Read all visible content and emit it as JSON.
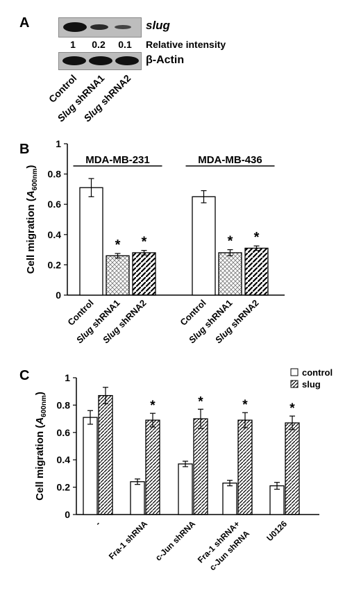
{
  "panel_a": {
    "letter": "A",
    "gene_label": "slug",
    "relative_intensity_label": "Relative intensity",
    "intensities": [
      "1",
      "0.2",
      "0.1"
    ],
    "actin_label": "β-Actin",
    "lanes": [
      "Control",
      "Slug shRNA1",
      "Slug shRNA2"
    ]
  },
  "chart_data": [
    {
      "panel": "B",
      "type": "bar",
      "ylabel": "Cell migration (A600nm)",
      "ylim": [
        0,
        1
      ],
      "yticks": [
        "0",
        "0.2",
        "0.4",
        "0.6",
        "0.8",
        "1"
      ],
      "groups": [
        {
          "name": "MDA-MB-231",
          "categories": [
            "Control",
            "Slug shRNA1",
            "Slug shRNA2"
          ],
          "values": [
            0.71,
            0.26,
            0.28
          ],
          "errors": [
            0.06,
            0.015,
            0.015
          ],
          "significant": [
            false,
            true,
            true
          ]
        },
        {
          "name": "MDA-MB-436",
          "categories": [
            "Control",
            "Slug shRNA1",
            "Slug shRNA2"
          ],
          "values": [
            0.65,
            0.28,
            0.31
          ],
          "errors": [
            0.04,
            0.02,
            0.015
          ],
          "significant": [
            false,
            true,
            true
          ]
        }
      ],
      "significance_mark": "*"
    },
    {
      "panel": "C",
      "type": "bar",
      "ylabel": "Cell migration (A600nm)",
      "ylim": [
        0,
        1
      ],
      "yticks": [
        "0",
        "0.2",
        "0.4",
        "0.6",
        "0.8",
        "1"
      ],
      "categories": [
        "-",
        "Fra-1 shRNA",
        "c-Jun shRNA",
        "Fra-1 shRNA+\nc-Jun shRNA",
        "U0126"
      ],
      "series": [
        {
          "name": "control",
          "values": [
            0.71,
            0.24,
            0.37,
            0.23,
            0.21
          ],
          "errors": [
            0.05,
            0.02,
            0.02,
            0.02,
            0.025
          ]
        },
        {
          "name": "slug",
          "values": [
            0.87,
            0.69,
            0.7,
            0.69,
            0.67
          ],
          "errors": [
            0.06,
            0.05,
            0.07,
            0.055,
            0.05
          ],
          "significant": [
            false,
            true,
            true,
            true,
            true
          ]
        }
      ],
      "significance_mark": "*",
      "legend_placement": "top-right"
    }
  ],
  "colors": {
    "bar_outline": "#000000",
    "blot_bg": "#bdbdbd",
    "band": "#111111"
  }
}
